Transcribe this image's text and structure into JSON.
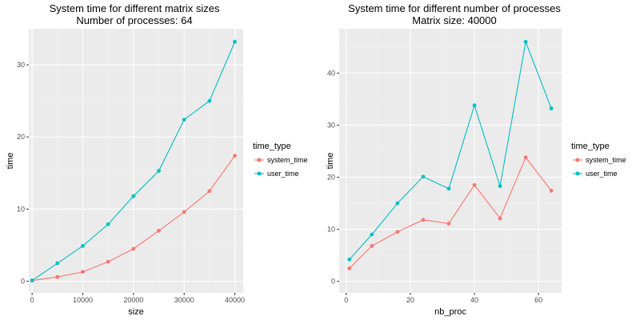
{
  "colors": {
    "system_time": "#F8766D",
    "user_time": "#00BFC4",
    "panel": "#EBEBEB",
    "grid_major": "#FFFFFF",
    "grid_minor": "#F4F4F4"
  },
  "chart_data": [
    {
      "type": "line",
      "title": "System time for different matrix sizes",
      "subtitle": "Number of processes: 64",
      "xlabel": "size",
      "ylabel": "time",
      "xlim": [
        -650,
        41650
      ],
      "ylim": [
        -1.6,
        35.0
      ],
      "xticks": [
        0,
        10000,
        20000,
        30000,
        40000
      ],
      "xtick_labels": [
        "0",
        "10000",
        "20000",
        "30000",
        "40000"
      ],
      "yticks": [
        0,
        10,
        20,
        30
      ],
      "ytick_labels": [
        "0",
        "10",
        "20",
        "30"
      ],
      "x": [
        0,
        5000,
        10000,
        15000,
        20000,
        25000,
        30000,
        35000,
        40000
      ],
      "series": [
        {
          "name": "system_time",
          "values": [
            0.1,
            0.6,
            1.3,
            2.7,
            4.5,
            7.0,
            9.6,
            12.5,
            17.4
          ]
        },
        {
          "name": "user_time",
          "values": [
            0.1,
            2.5,
            4.9,
            7.9,
            11.8,
            15.3,
            22.4,
            25.0,
            33.2
          ]
        }
      ],
      "legend": {
        "title": "time_type",
        "position": "right"
      },
      "grid": true
    },
    {
      "type": "line",
      "title": "System time for different number of processes",
      "subtitle": "Matrix size: 40000",
      "xlabel": "nb_proc",
      "ylabel": "time",
      "xlim": [
        -2.2,
        67.2
      ],
      "ylim": [
        -2.2,
        48.5
      ],
      "xticks": [
        0,
        20,
        40,
        60
      ],
      "xtick_labels": [
        "0",
        "20",
        "40",
        "60"
      ],
      "yticks": [
        0,
        10,
        20,
        30,
        40
      ],
      "ytick_labels": [
        "0",
        "10",
        "20",
        "30",
        "40"
      ],
      "x": [
        1,
        8,
        16,
        24,
        32,
        40,
        48,
        56,
        64
      ],
      "series": [
        {
          "name": "system_time",
          "values": [
            2.5,
            6.8,
            9.5,
            11.8,
            11.1,
            18.5,
            12.1,
            23.8,
            17.4
          ]
        },
        {
          "name": "user_time",
          "values": [
            4.2,
            9.0,
            15.0,
            20.1,
            17.8,
            33.8,
            18.3,
            46.0,
            33.2
          ]
        }
      ],
      "legend": {
        "title": "time_type",
        "position": "right"
      },
      "grid": true
    }
  ]
}
